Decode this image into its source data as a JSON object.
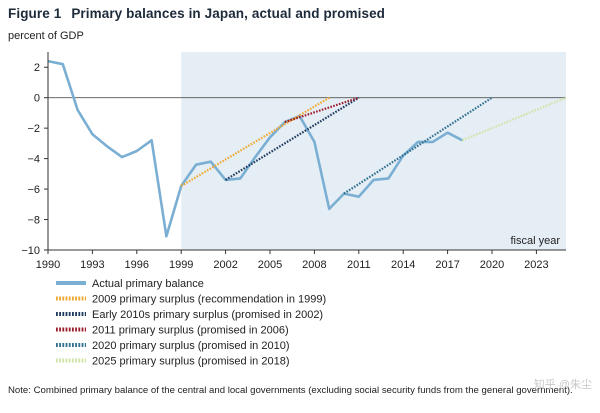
{
  "figure": {
    "label": "Figure 1",
    "title": "Primary balances in Japan, actual and promised",
    "unit": "percent of GDP",
    "note": "Note: Combined primary balance of the central and local governments (excluding social security funds from the general government).",
    "watermark": "知乎 @朱尘"
  },
  "chart_data": {
    "type": "line",
    "xlim": [
      1990,
      2025
    ],
    "ylim": [
      -10,
      3
    ],
    "xticks": [
      1990,
      1993,
      1996,
      1999,
      2002,
      2005,
      2008,
      2011,
      2014,
      2017,
      2020,
      2023
    ],
    "yticks": [
      2,
      0,
      -2,
      -4,
      -6,
      -8,
      -10
    ],
    "tick_labels_x": [
      "1990",
      "1993",
      "1996",
      "1999",
      "2002",
      "2005",
      "2008",
      "2011",
      "2014",
      "2017",
      "2020",
      "2023"
    ],
    "tick_labels_y": [
      "2",
      "0",
      "−2",
      "−4",
      "−6",
      "−8",
      "−10"
    ],
    "shaded_region": {
      "x_start": 1999,
      "x_end": 2025,
      "label": "fiscal year"
    },
    "series": [
      {
        "name": "Actual primary balance",
        "style": "solid",
        "color": "#7aafd3",
        "points": [
          [
            1990,
            2.4
          ],
          [
            1991,
            2.2
          ],
          [
            1992,
            -0.8
          ],
          [
            1993,
            -2.4
          ],
          [
            1994,
            -3.2
          ],
          [
            1995,
            -3.9
          ],
          [
            1996,
            -3.5
          ],
          [
            1997,
            -2.8
          ],
          [
            1998,
            -9.1
          ],
          [
            1999,
            -5.8
          ],
          [
            2000,
            -4.4
          ],
          [
            2001,
            -4.2
          ],
          [
            2002,
            -5.4
          ],
          [
            2003,
            -5.3
          ],
          [
            2004,
            -3.9
          ],
          [
            2005,
            -2.6
          ],
          [
            2006,
            -1.6
          ],
          [
            2007,
            -1.2
          ],
          [
            2008,
            -2.9
          ],
          [
            2009,
            -7.3
          ],
          [
            2010,
            -6.3
          ],
          [
            2011,
            -6.5
          ],
          [
            2012,
            -5.4
          ],
          [
            2013,
            -5.3
          ],
          [
            2014,
            -3.8
          ],
          [
            2015,
            -2.9
          ],
          [
            2016,
            -2.9
          ],
          [
            2017,
            -2.3
          ],
          [
            2018,
            -2.8
          ]
        ]
      },
      {
        "name": "2009 primary surplus (recommendation in 1999)",
        "style": "dotted",
        "color": "#f0a830",
        "points": [
          [
            1999,
            -5.8
          ],
          [
            2009,
            0
          ]
        ]
      },
      {
        "name": "Early 2010s primary surplus (promised in 2002)",
        "style": "dotted",
        "color": "#1f3a5f",
        "points": [
          [
            2002,
            -5.4
          ],
          [
            2011,
            0
          ]
        ]
      },
      {
        "name": "2011 primary surplus (promised in 2006)",
        "style": "dotted",
        "color": "#9c1c2c",
        "points": [
          [
            2006,
            -1.6
          ],
          [
            2011,
            0
          ]
        ]
      },
      {
        "name": "2020 primary surplus (promised in 2010)",
        "style": "dotted",
        "color": "#2f6f8f",
        "points": [
          [
            2010,
            -6.3
          ],
          [
            2020,
            0
          ]
        ]
      },
      {
        "name": "2025 primary surplus (promised in 2018)",
        "style": "dotted",
        "color": "#cfe3a3",
        "points": [
          [
            2018,
            -2.8
          ],
          [
            2025,
            0
          ]
        ]
      }
    ]
  }
}
